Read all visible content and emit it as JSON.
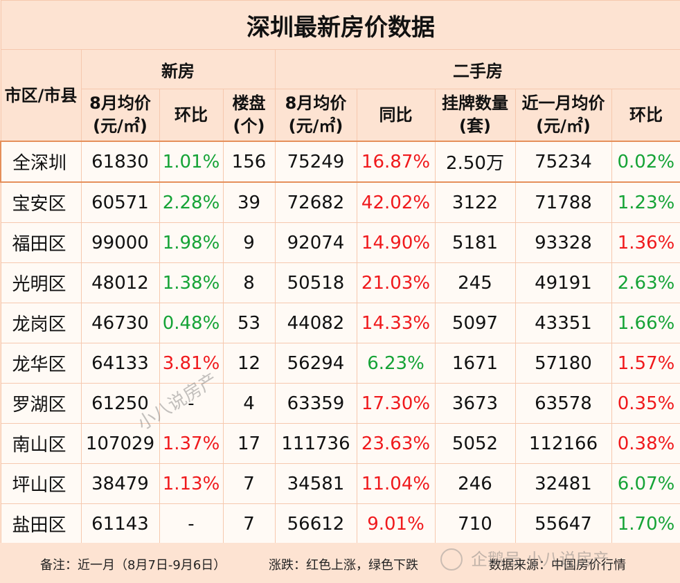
{
  "title": "深圳最新房价数据",
  "headers": {
    "district": "市区/市县",
    "new_house": "新房",
    "second_hand": "二手房",
    "columns": [
      "8月均价(元/㎡)",
      "环比",
      "楼盘(个)",
      "8月均价(元/㎡)",
      "同比",
      "挂牌数量(套)",
      "近一月均价(元/㎡)",
      "环比"
    ]
  },
  "rows": [
    {
      "district": "全深圳",
      "new_price": "61830",
      "new_mom": "1.01%",
      "new_mom_color": "green",
      "projects": "156",
      "sh_price": "75249",
      "sh_yoy": "16.87%",
      "sh_yoy_color": "red",
      "listings": "2.50万",
      "recent_price": "75234",
      "sh_mom": "0.02%",
      "sh_mom_color": "green"
    },
    {
      "district": "宝安区",
      "new_price": "60571",
      "new_mom": "2.28%",
      "new_mom_color": "green",
      "projects": "39",
      "sh_price": "72682",
      "sh_yoy": "42.02%",
      "sh_yoy_color": "red",
      "listings": "3122",
      "recent_price": "71788",
      "sh_mom": "1.23%",
      "sh_mom_color": "green"
    },
    {
      "district": "福田区",
      "new_price": "99000",
      "new_mom": "1.98%",
      "new_mom_color": "green",
      "projects": "9",
      "sh_price": "92074",
      "sh_yoy": "14.90%",
      "sh_yoy_color": "red",
      "listings": "5181",
      "recent_price": "93328",
      "sh_mom": "1.36%",
      "sh_mom_color": "red"
    },
    {
      "district": "光明区",
      "new_price": "48012",
      "new_mom": "1.38%",
      "new_mom_color": "green",
      "projects": "8",
      "sh_price": "50518",
      "sh_yoy": "21.03%",
      "sh_yoy_color": "red",
      "listings": "245",
      "recent_price": "49191",
      "sh_mom": "2.63%",
      "sh_mom_color": "green"
    },
    {
      "district": "龙岗区",
      "new_price": "46730",
      "new_mom": "0.48%",
      "new_mom_color": "green",
      "projects": "53",
      "sh_price": "44082",
      "sh_yoy": "14.33%",
      "sh_yoy_color": "red",
      "listings": "5097",
      "recent_price": "43351",
      "sh_mom": "1.66%",
      "sh_mom_color": "green"
    },
    {
      "district": "龙华区",
      "new_price": "64133",
      "new_mom": "3.81%",
      "new_mom_color": "red",
      "projects": "12",
      "sh_price": "56294",
      "sh_yoy": "6.23%",
      "sh_yoy_color": "green",
      "listings": "1671",
      "recent_price": "57180",
      "sh_mom": "1.57%",
      "sh_mom_color": "red"
    },
    {
      "district": "罗湖区",
      "new_price": "61250",
      "new_mom": "-",
      "new_mom_color": "none",
      "projects": "4",
      "sh_price": "63359",
      "sh_yoy": "17.30%",
      "sh_yoy_color": "red",
      "listings": "3673",
      "recent_price": "63578",
      "sh_mom": "0.35%",
      "sh_mom_color": "red"
    },
    {
      "district": "南山区",
      "new_price": "107029",
      "new_mom": "1.37%",
      "new_mom_color": "red",
      "projects": "17",
      "sh_price": "111736",
      "sh_yoy": "23.63%",
      "sh_yoy_color": "red",
      "listings": "5052",
      "recent_price": "112166",
      "sh_mom": "0.38%",
      "sh_mom_color": "red"
    },
    {
      "district": "坪山区",
      "new_price": "38479",
      "new_mom": "1.13%",
      "new_mom_color": "red",
      "projects": "7",
      "sh_price": "34581",
      "sh_yoy": "11.04%",
      "sh_yoy_color": "red",
      "listings": "246",
      "recent_price": "32481",
      "sh_mom": "6.07%",
      "sh_mom_color": "green"
    },
    {
      "district": "盐田区",
      "new_price": "61143",
      "new_mom": "-",
      "new_mom_color": "none",
      "projects": "7",
      "sh_price": "56612",
      "sh_yoy": "9.01%",
      "sh_yoy_color": "red",
      "listings": "710",
      "recent_price": "55647",
      "sh_mom": "1.70%",
      "sh_mom_color": "green"
    }
  ],
  "footer": {
    "note": "备注：近一月（8月7日-9月6日）",
    "legend": "涨跌：红色上涨，绿色下跌",
    "source": "数据来源：中国房价行情"
  },
  "watermark": {
    "diagonal": "小八说房产",
    "corner": "企鹅号 小八说房产"
  },
  "colors": {
    "rise": "#f0191c",
    "fall": "#15a336",
    "header_bg": "#fde3d2",
    "highlight_border": "#e58f5a"
  }
}
